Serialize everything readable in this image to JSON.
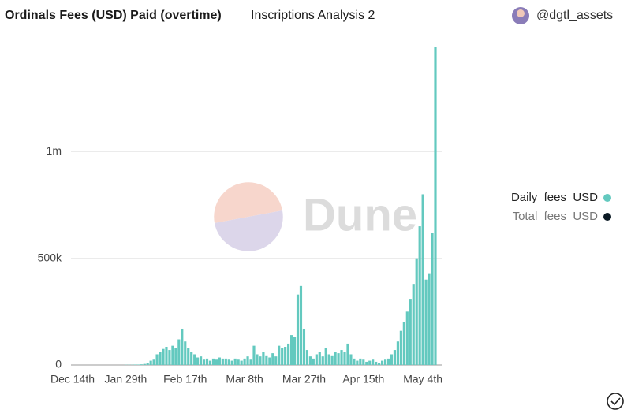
{
  "header": {
    "title": "Ordinals Fees (USD) Paid (overtime)",
    "subtitle": "Inscriptions Analysis 2",
    "author": "@dgtl_assets"
  },
  "chart_data": {
    "type": "bar",
    "watermark": "Dune",
    "categories": [
      "Dec 14th",
      null,
      null,
      null,
      null,
      null,
      null,
      null,
      null,
      null,
      null,
      null,
      null,
      null,
      null,
      null,
      null,
      "Jan 29th",
      null,
      null,
      null,
      null,
      null,
      null,
      null,
      null,
      null,
      null,
      null,
      null,
      null,
      null,
      null,
      null,
      null,
      null,
      "Feb 17th",
      null,
      null,
      null,
      null,
      null,
      null,
      null,
      null,
      null,
      null,
      null,
      null,
      null,
      null,
      null,
      null,
      null,
      null,
      "Mar 8th",
      null,
      null,
      null,
      null,
      null,
      null,
      null,
      null,
      null,
      null,
      null,
      null,
      null,
      null,
      null,
      null,
      null,
      null,
      "Mar 27th",
      null,
      null,
      null,
      null,
      null,
      null,
      null,
      null,
      null,
      null,
      null,
      null,
      null,
      null,
      null,
      null,
      null,
      null,
      "Apr 15th",
      null,
      null,
      null,
      null,
      null,
      null,
      null,
      null,
      null,
      null,
      null,
      null,
      null,
      null,
      null,
      null,
      null,
      null,
      "May 4th",
      null,
      null,
      null,
      null
    ],
    "values": [
      0,
      0,
      0,
      0,
      0,
      0,
      0,
      0,
      0,
      0,
      0,
      0,
      0,
      0,
      0,
      0,
      0,
      1000,
      1000,
      1000,
      2000,
      2000,
      3000,
      5000,
      10000,
      20000,
      25000,
      50000,
      60000,
      75000,
      85000,
      70000,
      90000,
      80000,
      120000,
      170000,
      110000,
      80000,
      60000,
      50000,
      35000,
      40000,
      25000,
      30000,
      20000,
      30000,
      25000,
      35000,
      30000,
      30000,
      25000,
      20000,
      30000,
      25000,
      20000,
      30000,
      40000,
      25000,
      90000,
      50000,
      40000,
      60000,
      45000,
      35000,
      55000,
      40000,
      90000,
      80000,
      85000,
      100000,
      140000,
      130000,
      330000,
      370000,
      170000,
      70000,
      40000,
      30000,
      50000,
      60000,
      40000,
      80000,
      50000,
      45000,
      60000,
      55000,
      70000,
      60000,
      100000,
      50000,
      30000,
      20000,
      30000,
      25000,
      15000,
      20000,
      25000,
      15000,
      10000,
      20000,
      25000,
      30000,
      50000,
      70000,
      110000,
      160000,
      200000,
      250000,
      310000,
      380000,
      500000,
      650000,
      800000,
      400000,
      430000,
      620000,
      1490000
    ],
    "color": "#63c9bf",
    "legend": [
      {
        "name": "Daily_fees_USD",
        "color": "#63c9bf"
      },
      {
        "name": "Total_fees_USD",
        "color": "#0b1a24"
      }
    ],
    "ylim": [
      0,
      1500000
    ],
    "yticks": [
      0,
      {
        "value": 500000,
        "label": "500k"
      },
      {
        "value": 1000000,
        "label": "1m"
      }
    ],
    "grid": true
  }
}
